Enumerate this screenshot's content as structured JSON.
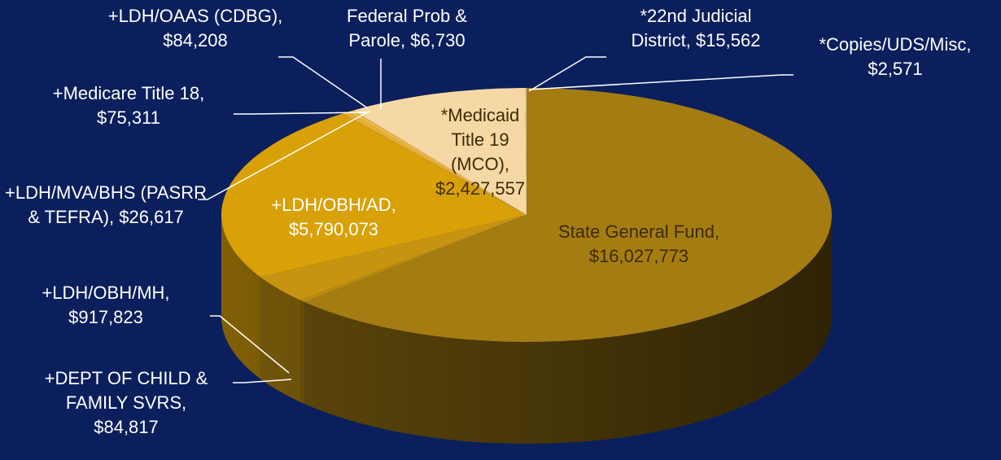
{
  "chart_data": {
    "type": "pie3d",
    "categories": [
      "State General Fund,",
      "+DEPT OF CHILD & FAMILY SVRS,",
      "+LDH/OBH/MH,",
      "+LDH/OBH/AD,",
      "+LDH/MVA/BHS (PASRR & TEFRA),",
      "+Medicare Title 18,",
      "+LDH/OAAS (CDBG),",
      "Federal Prob & Parole,",
      "*Medicaid Title 19 (MCO),",
      "*22nd Judicial District,",
      "*Copies/UDS/Misc,"
    ],
    "values": [
      16027773,
      84817,
      917823,
      5790073,
      26617,
      75311,
      84208,
      6730,
      2427557,
      15562,
      2571
    ],
    "value_labels": [
      "$16,027,773",
      "$84,817",
      "$917,823",
      "$5,790,073",
      "$26,617",
      "$75,311",
      "$84,208",
      "$6,730",
      "$2,427,557",
      "$15,562",
      "$2,571"
    ],
    "colors": [
      "#a47c12",
      "#b88a0e",
      "#c69410",
      "#d9a108",
      "#e0a820",
      "#e9b030",
      "#eeb845",
      "#f0c060",
      "#f6d8a4",
      "#f3cf90",
      "#f8dfb2"
    ]
  }
}
